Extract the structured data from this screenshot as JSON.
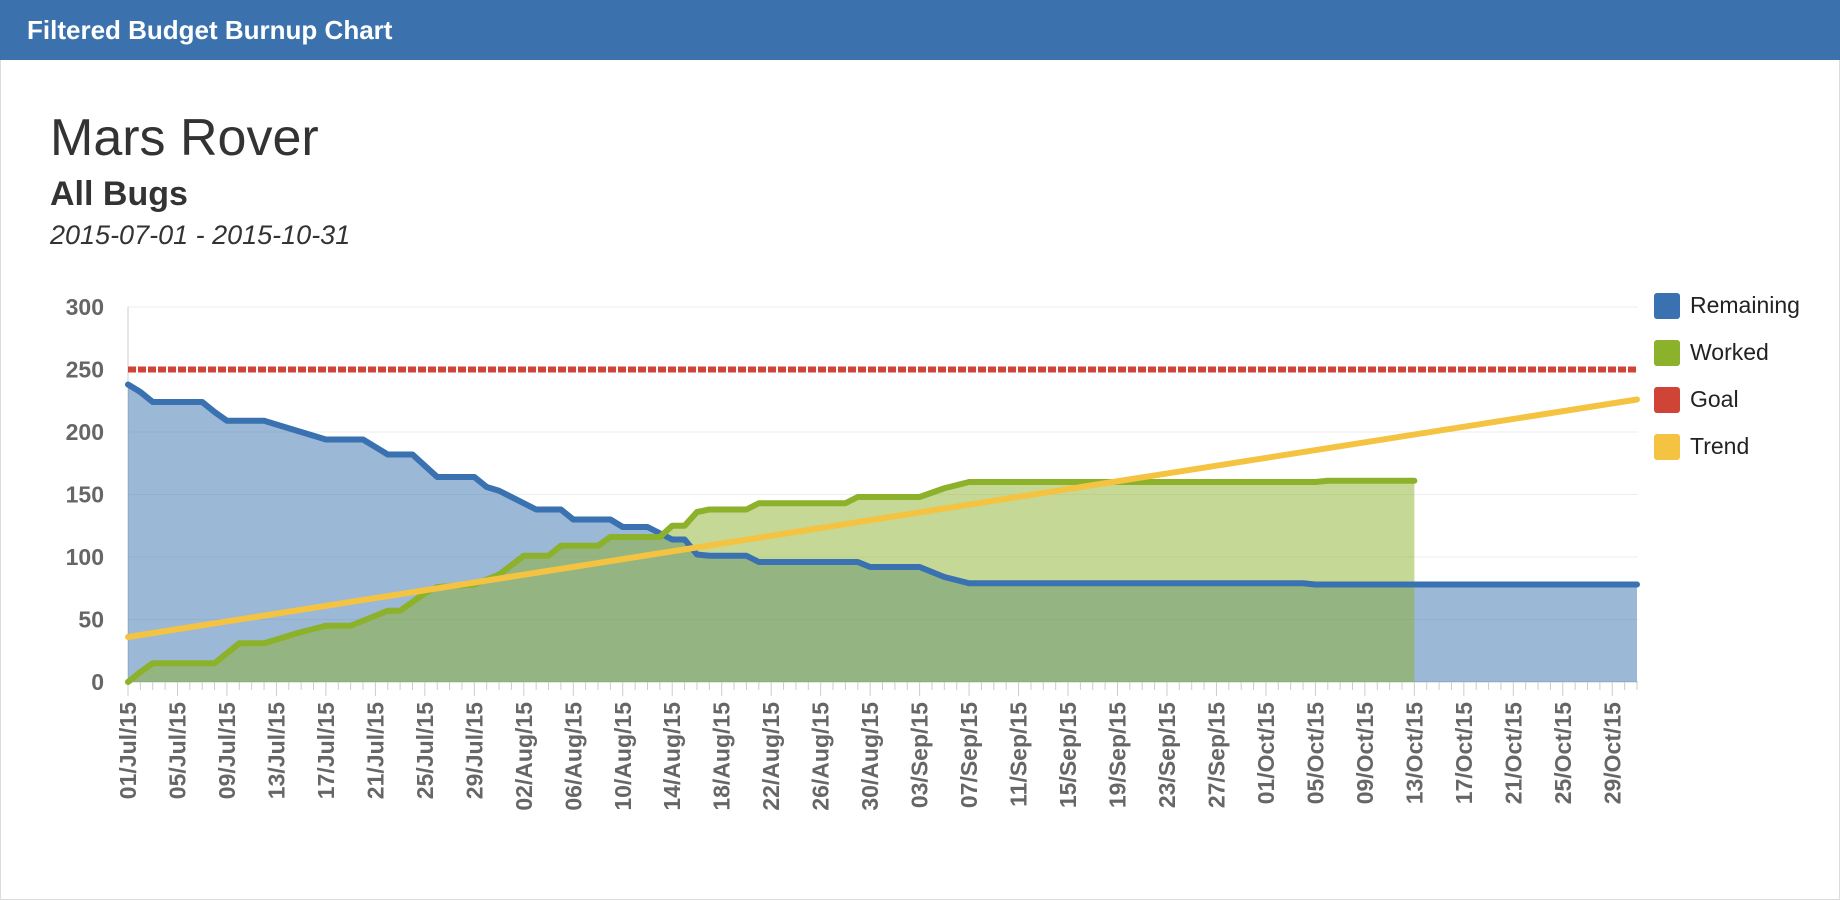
{
  "header": {
    "title": "Filtered Budget Burnup Chart"
  },
  "report": {
    "project": "Mars Rover",
    "filter": "All Bugs",
    "date_range": "2015-07-01 - 2015-10-31"
  },
  "colors": {
    "header": "#3b72ad",
    "remaining": "#3a71b0",
    "worked": "#8cb12b",
    "goal": "#d04437",
    "trend": "#f5c342",
    "axis_text": "#666666"
  },
  "chart_data": {
    "type": "area",
    "x_start": "2015-07-01",
    "x_end": "2015-10-31",
    "ylim": [
      0,
      300
    ],
    "yticks": [
      0,
      50,
      100,
      150,
      200,
      250,
      300
    ],
    "xtick_labels": [
      "01/Jul/15",
      "05/Jul/15",
      "09/Jul/15",
      "13/Jul/15",
      "17/Jul/15",
      "21/Jul/15",
      "25/Jul/15",
      "29/Jul/15",
      "02/Aug/15",
      "06/Aug/15",
      "10/Aug/15",
      "14/Aug/15",
      "18/Aug/15",
      "22/Aug/15",
      "26/Aug/15",
      "30/Aug/15",
      "03/Sep/15",
      "07/Sep/15",
      "11/Sep/15",
      "15/Sep/15",
      "19/Sep/15",
      "23/Sep/15",
      "27/Sep/15",
      "01/Oct/15",
      "05/Oct/15",
      "09/Oct/15",
      "13/Oct/15",
      "17/Oct/15",
      "21/Oct/15",
      "25/Oct/15",
      "29/Oct/15"
    ],
    "legend_position": "right",
    "grid": true,
    "series": [
      {
        "name": "Remaining",
        "type": "area",
        "color": "#3a71b0",
        "points": [
          [
            "2015-07-01",
            238
          ],
          [
            "2015-07-02",
            232
          ],
          [
            "2015-07-03",
            224
          ],
          [
            "2015-07-07",
            224
          ],
          [
            "2015-07-08",
            216
          ],
          [
            "2015-07-09",
            209
          ],
          [
            "2015-07-12",
            209
          ],
          [
            "2015-07-17",
            194
          ],
          [
            "2015-07-20",
            194
          ],
          [
            "2015-07-22",
            182
          ],
          [
            "2015-07-24",
            182
          ],
          [
            "2015-07-26",
            164
          ],
          [
            "2015-07-29",
            164
          ],
          [
            "2015-07-30",
            156
          ],
          [
            "2015-07-31",
            153
          ],
          [
            "2015-08-03",
            138
          ],
          [
            "2015-08-05",
            138
          ],
          [
            "2015-08-06",
            130
          ],
          [
            "2015-08-09",
            130
          ],
          [
            "2015-08-10",
            124
          ],
          [
            "2015-08-12",
            124
          ],
          [
            "2015-08-13",
            119
          ],
          [
            "2015-08-14",
            114
          ],
          [
            "2015-08-15",
            114
          ],
          [
            "2015-08-16",
            102
          ],
          [
            "2015-08-17",
            101
          ],
          [
            "2015-08-20",
            101
          ],
          [
            "2015-08-21",
            96
          ],
          [
            "2015-08-29",
            96
          ],
          [
            "2015-08-30",
            92
          ],
          [
            "2015-09-03",
            92
          ],
          [
            "2015-09-05",
            84
          ],
          [
            "2015-09-07",
            79
          ],
          [
            "2015-10-04",
            79
          ],
          [
            "2015-10-05",
            78
          ],
          [
            "2015-10-31",
            78
          ]
        ]
      },
      {
        "name": "Worked",
        "type": "area",
        "color": "#8cb12b",
        "points": [
          [
            "2015-07-01",
            0
          ],
          [
            "2015-07-02",
            8
          ],
          [
            "2015-07-03",
            15
          ],
          [
            "2015-07-08",
            15
          ],
          [
            "2015-07-10",
            31
          ],
          [
            "2015-07-12",
            31
          ],
          [
            "2015-07-15",
            40
          ],
          [
            "2015-07-17",
            45
          ],
          [
            "2015-07-19",
            45
          ],
          [
            "2015-07-22",
            57
          ],
          [
            "2015-07-23",
            57
          ],
          [
            "2015-07-25",
            71
          ],
          [
            "2015-07-26",
            76
          ],
          [
            "2015-07-29",
            78
          ],
          [
            "2015-07-31",
            86
          ],
          [
            "2015-08-02",
            101
          ],
          [
            "2015-08-04",
            101
          ],
          [
            "2015-08-05",
            109
          ],
          [
            "2015-08-08",
            109
          ],
          [
            "2015-08-09",
            116
          ],
          [
            "2015-08-13",
            116
          ],
          [
            "2015-08-14",
            125
          ],
          [
            "2015-08-15",
            125
          ],
          [
            "2015-08-16",
            136
          ],
          [
            "2015-08-17",
            138
          ],
          [
            "2015-08-20",
            138
          ],
          [
            "2015-08-21",
            143
          ],
          [
            "2015-08-28",
            143
          ],
          [
            "2015-08-29",
            148
          ],
          [
            "2015-09-03",
            148
          ],
          [
            "2015-09-05",
            155
          ],
          [
            "2015-09-07",
            160
          ],
          [
            "2015-10-05",
            160
          ],
          [
            "2015-10-06",
            161
          ],
          [
            "2015-10-13",
            161
          ]
        ]
      },
      {
        "name": "Goal",
        "type": "line",
        "color": "#d04437",
        "points": [
          [
            "2015-07-01",
            250
          ],
          [
            "2015-10-31",
            250
          ]
        ]
      },
      {
        "name": "Trend",
        "type": "line",
        "color": "#f5c342",
        "points": [
          [
            "2015-07-01",
            36
          ],
          [
            "2015-10-31",
            226
          ]
        ]
      }
    ]
  }
}
